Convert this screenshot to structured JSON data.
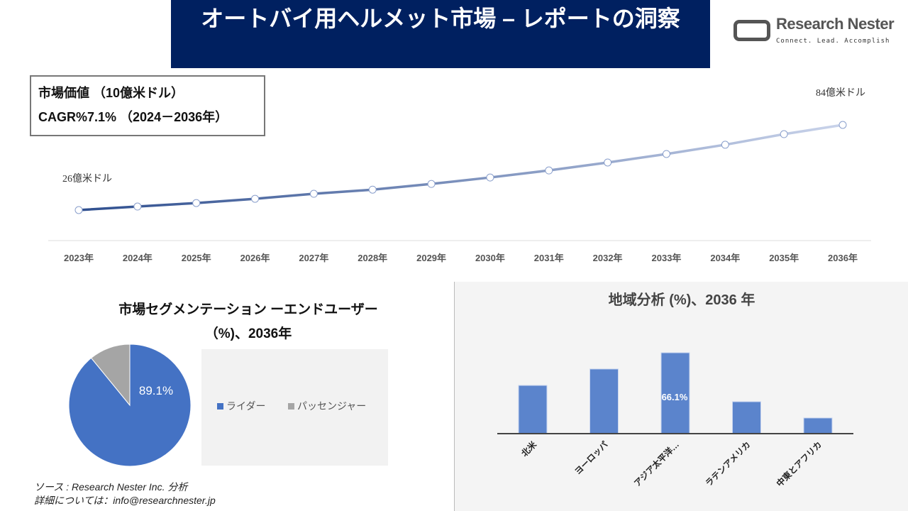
{
  "header": {
    "title": "オートバイ用ヘルメット市場 – レポートの洞察"
  },
  "logo": {
    "name": "Research Nester",
    "tagline": "Connect. Lead. Accomplish"
  },
  "kpi": {
    "line1": "市場価値 （10億米ドル）",
    "line2": "CAGR%7.1% （2024－2036年）"
  },
  "chart_data": [
    {
      "type": "line",
      "categories": [
        "2023年",
        "2024年",
        "2025年",
        "2026年",
        "2027年",
        "2028年",
        "2029年",
        "2030年",
        "2031年",
        "2032年",
        "2033年",
        "2034年",
        "2035年",
        "2036年"
      ],
      "values": [
        26,
        28.4,
        30.8,
        33.7,
        37.1,
        39.9,
        43.8,
        48.2,
        53.0,
        58.4,
        64.2,
        70.5,
        77.7,
        84
      ],
      "start_label": "26億米ドル",
      "end_label": "84億米ドル",
      "colors": [
        "#2f4f8f",
        "#c9d3ea"
      ]
    },
    {
      "type": "pie",
      "title": "市場セグメンテーション ーエンドユーザー（%)、2036年",
      "labels": [
        "ライダー",
        "パッセンジャー"
      ],
      "values": [
        89.1,
        10.9
      ],
      "data_label": "89.1%",
      "colors": [
        "#4472c4",
        "#a5a5a5"
      ],
      "legend": "right"
    },
    {
      "type": "bar",
      "title": "地域分析 (%)、2036 年",
      "categories": [
        "北米",
        "ヨーロッパ",
        "アジア太平洋…",
        "ラテンアメリカ",
        "中東とアフリカ"
      ],
      "values": [
        39.4,
        52.8,
        66.1,
        26.1,
        12.8
      ],
      "data_label": "66.1%",
      "color": "#5b84cc"
    }
  ],
  "source": {
    "line1": "ソース : Research Nester Inc. 分析",
    "line2": "詳細については：info@researchnester.jp"
  }
}
